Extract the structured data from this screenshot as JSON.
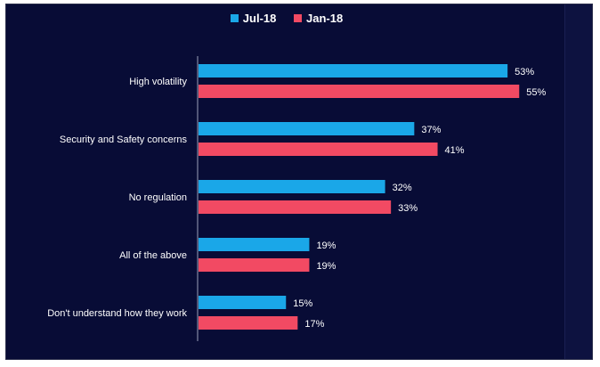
{
  "chart_data": {
    "type": "bar",
    "orientation": "horizontal",
    "categories": [
      "High volatility",
      "Security and Safety concerns",
      "No regulation",
      "All of the above",
      "Don't understand how they work"
    ],
    "series": [
      {
        "name": "Jul-18",
        "values": [
          53,
          37,
          32,
          19,
          15
        ],
        "color": "#1aa7e8"
      },
      {
        "name": "Jan-18",
        "values": [
          55,
          41,
          33,
          19,
          17
        ],
        "color": "#f24a63"
      }
    ],
    "value_suffix": "%",
    "xlim": [
      0,
      70
    ],
    "grid": false,
    "legend_position": "top-center"
  }
}
